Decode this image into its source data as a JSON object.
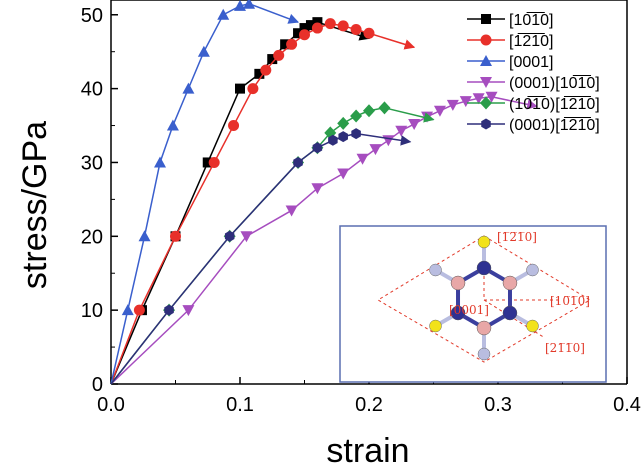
{
  "chart_data": {
    "type": "line",
    "xlabel": "strain",
    "ylabel": "stress/GPa",
    "xlim": [
      0,
      0.4
    ],
    "ylim": [
      0,
      52
    ],
    "x_ticks": [
      0.0,
      0.1,
      0.2,
      0.3,
      0.4
    ],
    "x_tick_labels": [
      "0.0",
      "0.1",
      "0.2",
      "0.3",
      "0.4"
    ],
    "y_ticks": [
      0,
      10,
      20,
      30,
      40,
      50
    ],
    "y_tick_labels": [
      "0",
      "10",
      "20",
      "30",
      "40",
      "50"
    ],
    "legend_position": "top-right",
    "series": [
      {
        "name": "[10̅1̅0]",
        "color": "#000000",
        "marker": "square",
        "x": [
          0,
          0.024,
          0.05,
          0.075,
          0.1,
          0.115,
          0.125,
          0.135,
          0.145,
          0.15,
          0.155,
          0.16
        ],
        "y": [
          0,
          10,
          20,
          30,
          40,
          42,
          44,
          46,
          47.5,
          48.2,
          48.6,
          49
        ],
        "arrow_to": [
          0.2,
          46.8
        ]
      },
      {
        "name": "[1̅2̅1̅0]",
        "color": "#e8302a",
        "marker": "circle",
        "x": [
          0,
          0.022,
          0.05,
          0.08,
          0.095,
          0.11,
          0.12,
          0.13,
          0.14,
          0.15,
          0.16,
          0.17,
          0.18,
          0.19,
          0.2
        ],
        "y": [
          0,
          10,
          20,
          30,
          35,
          40,
          42.5,
          44.5,
          46,
          47.3,
          48.2,
          48.8,
          48.5,
          48,
          47.5
        ],
        "arrow_to": [
          0.235,
          45.6
        ]
      },
      {
        "name": "[0001]",
        "color": "#3a5fcd",
        "marker": "triangle-up",
        "x": [
          0,
          0.013,
          0.026,
          0.038,
          0.048,
          0.06,
          0.072,
          0.087,
          0.1,
          0.107
        ],
        "y": [
          0,
          10,
          20,
          30,
          35,
          40,
          45,
          50,
          51.2,
          51.5
        ],
        "arrow_to": [
          0.145,
          49
        ]
      },
      {
        "name": "(0001)[10̅1̅0]",
        "color": "#a64dbf",
        "marker": "triangle-down",
        "x": [
          0,
          0.06,
          0.105,
          0.14,
          0.16,
          0.18,
          0.195,
          0.205,
          0.215,
          0.225,
          0.235,
          0.245,
          0.255,
          0.265,
          0.275,
          0.285,
          0.295
        ],
        "y": [
          0,
          10,
          20,
          23.5,
          26.5,
          28.5,
          30.5,
          31.8,
          33,
          34.3,
          35.2,
          36.2,
          37,
          37.8,
          38.3,
          38.7,
          38.9
        ],
        "arrow_to": [
          0.33,
          37.6
        ]
      },
      {
        "name": "(10̅1̅0)[1̅2̅1̅0]",
        "color": "#2a9d4a",
        "marker": "diamond",
        "x": [
          0,
          0.045,
          0.092,
          0.145,
          0.16,
          0.17,
          0.18,
          0.19,
          0.2,
          0.212
        ],
        "y": [
          0,
          10,
          20,
          30,
          32,
          34,
          35.3,
          36.3,
          37,
          37.4
        ],
        "arrow_to": [
          0.25,
          35.8
        ]
      },
      {
        "name": "(0001)[1̅2̅1̅0]",
        "color": "#2e2e7a",
        "marker": "hexagon",
        "x": [
          0,
          0.045,
          0.092,
          0.145,
          0.16,
          0.172,
          0.18,
          0.19
        ],
        "y": [
          0,
          10,
          20,
          30,
          32,
          33,
          33.5,
          33.9
        ],
        "arrow_to": [
          0.232,
          32.8
        ]
      }
    ],
    "inset": {
      "labels": [
        "[1̅2̅1̅0]",
        "[0001]",
        "[10̅1̅0]",
        "[21̅1̅0]"
      ]
    }
  }
}
